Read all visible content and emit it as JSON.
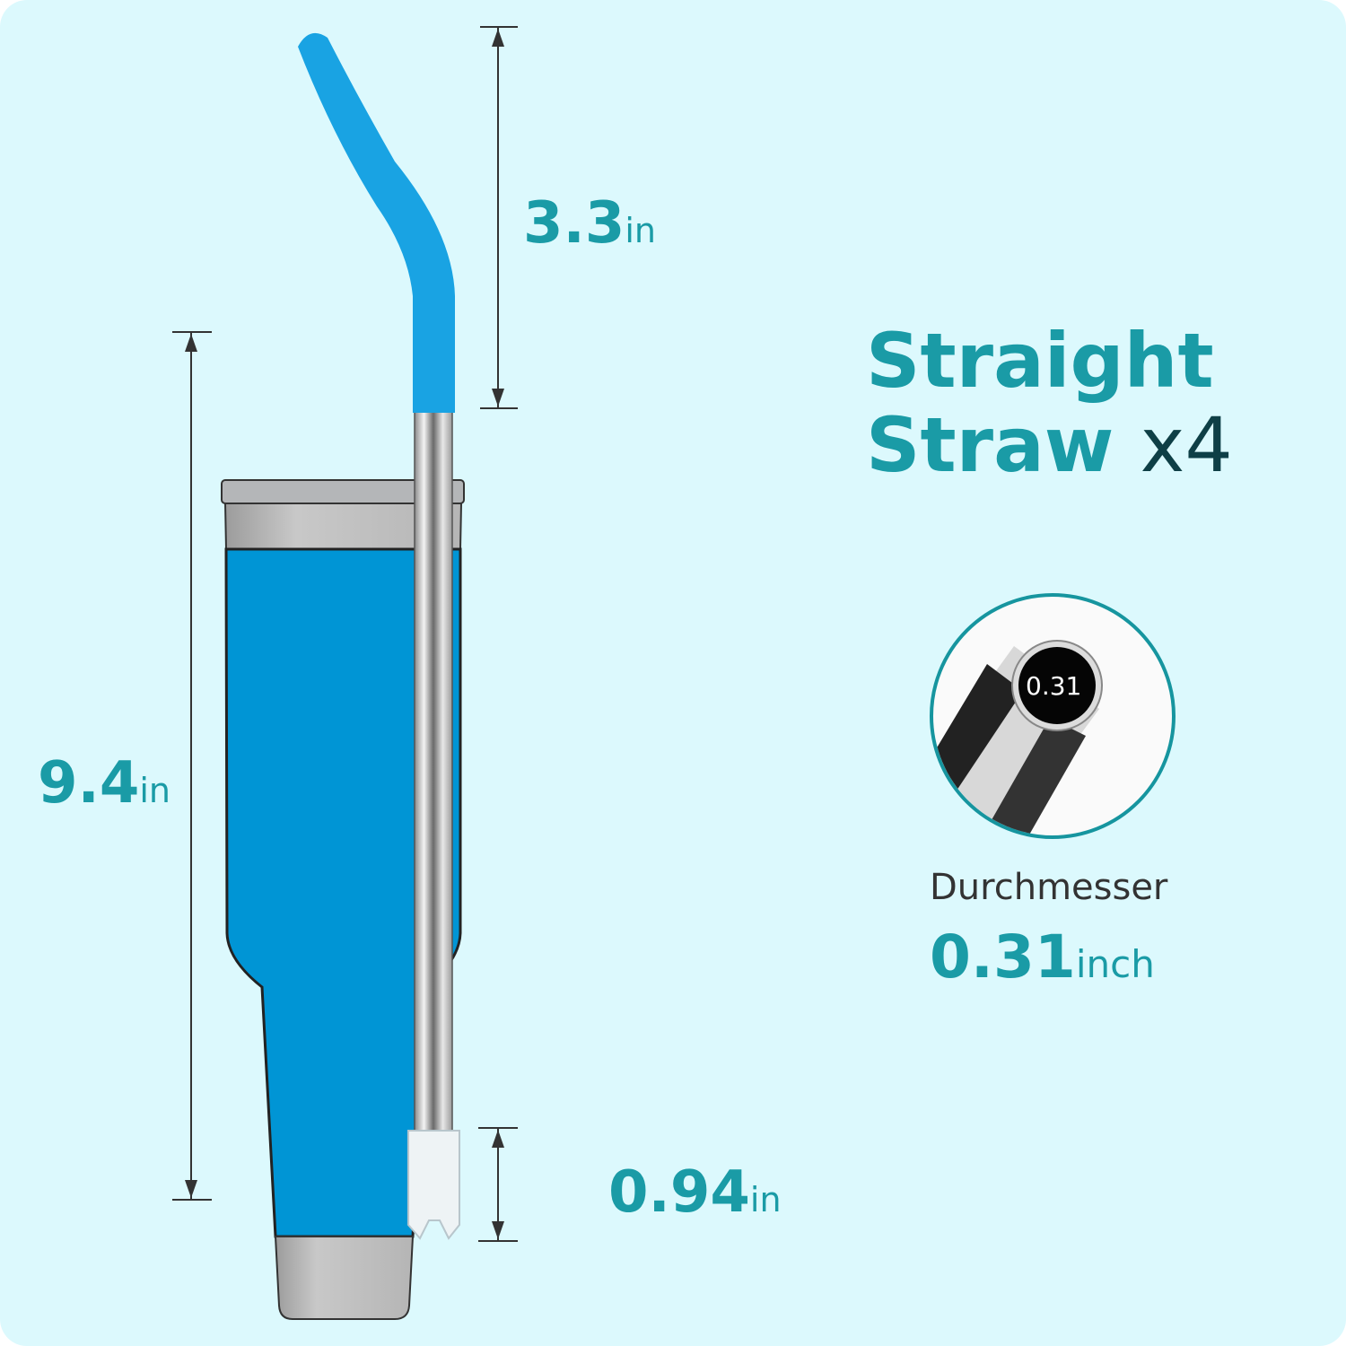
{
  "title": {
    "line1": "Straight",
    "line2": "Straw",
    "count": "x4"
  },
  "dimensions": {
    "tip_length": {
      "value": "3.3",
      "unit": "in"
    },
    "total_length": {
      "value": "9.4",
      "unit": "in"
    },
    "bottom_tip_length": {
      "value": "0.94",
      "unit": "in"
    }
  },
  "diameter": {
    "label": "Durchmesser",
    "value": "0.31",
    "unit": "inch",
    "closeup_value": "0.31"
  },
  "colors": {
    "accent": "#1a9ba6",
    "background": "#dcf9fd",
    "cup_blue": "#0095d5",
    "silicone_blue": "#19a3e3"
  }
}
